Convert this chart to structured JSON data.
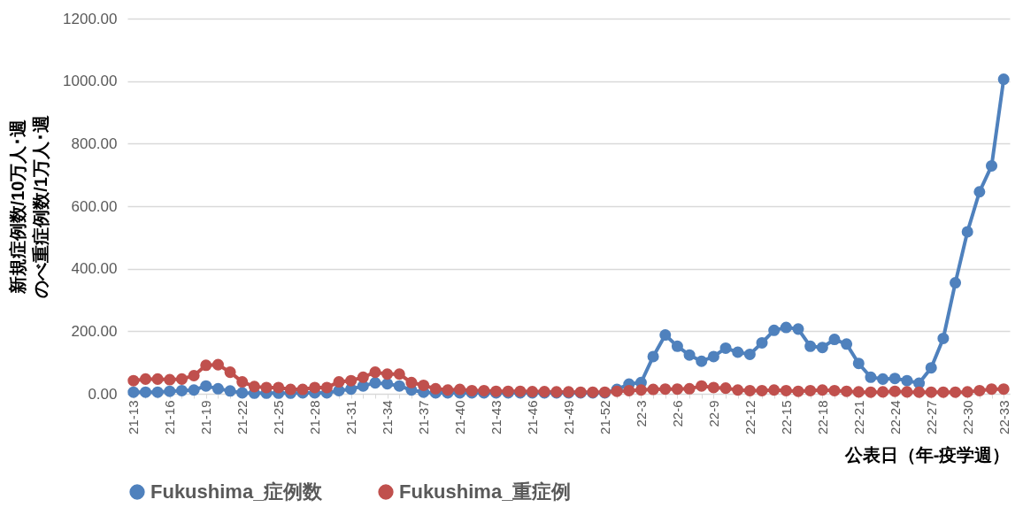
{
  "chart_data": {
    "type": "line",
    "xlabel": "公表日（年-疫学週）",
    "ylabel": "新規症例数/10万人･週のべ重症例数/1万人･週",
    "categories": [
      "21-13",
      null,
      null,
      "21-16",
      null,
      null,
      "21-19",
      null,
      null,
      "21-22",
      null,
      null,
      "21-25",
      null,
      null,
      "21-28",
      null,
      null,
      "21-31",
      null,
      null,
      "21-34",
      null,
      null,
      "21-37",
      null,
      null,
      "21-40",
      null,
      null,
      "21-43",
      null,
      null,
      "21-46",
      null,
      null,
      "21-49",
      null,
      null,
      "21-52",
      null,
      null,
      "22-3",
      null,
      null,
      "22-6",
      null,
      null,
      "22-9",
      null,
      null,
      "22-12",
      null,
      null,
      "22-15",
      null,
      null,
      "22-18",
      null,
      null,
      "22-21",
      null,
      null,
      "22-24",
      null,
      null,
      "22-27",
      null,
      null,
      "22-30",
      null,
      null,
      "22-33"
    ],
    "series": [
      {
        "name": "Fukushima_症例数",
        "color": "#4f81bd",
        "values": [
          5,
          5,
          5,
          8,
          10,
          12,
          25,
          16,
          9,
          3,
          2,
          2,
          2,
          2,
          3,
          3,
          3,
          10,
          15,
          25,
          35,
          32,
          25,
          12,
          5,
          3,
          3,
          3,
          3,
          3,
          3,
          3,
          3,
          3,
          3,
          3,
          3,
          3,
          3,
          3,
          14,
          31,
          36,
          119,
          188,
          152,
          124,
          104,
          119,
          146,
          133,
          126,
          163,
          203,
          212,
          207,
          152,
          148,
          174,
          159,
          97,
          53,
          47,
          49,
          42,
          34,
          83,
          177,
          355,
          518,
          646,
          729,
          1006
        ]
      },
      {
        "name": "Fukushima_重症例",
        "color": "#c0504d",
        "values": [
          42,
          47,
          47,
          45,
          47,
          58,
          91,
          93,
          69,
          38,
          23,
          20,
          20,
          14,
          14,
          20,
          20,
          38,
          42,
          53,
          69,
          63,
          63,
          36,
          27,
          16,
          12,
          14,
          10,
          10,
          8,
          8,
          8,
          7,
          7,
          6,
          6,
          5,
          5,
          5,
          8,
          10,
          12,
          14,
          15,
          15,
          16,
          25,
          20,
          18,
          12,
          10,
          10,
          12,
          10,
          8,
          10,
          12,
          10,
          8,
          6,
          5,
          6,
          8,
          6,
          5,
          5,
          5,
          5,
          6,
          10,
          15,
          15
        ]
      }
    ],
    "ylim": [
      0,
      1200
    ],
    "yticks": [
      {
        "value": 0,
        "label": "0.00"
      },
      {
        "value": 200,
        "label": "200.00"
      },
      {
        "value": 400,
        "label": "400.00"
      },
      {
        "value": 600,
        "label": "600.00"
      },
      {
        "value": 800,
        "label": "800.00"
      },
      {
        "value": 1000,
        "label": "1000.00"
      },
      {
        "value": 1200,
        "label": "1200.00"
      }
    ],
    "grid": "y",
    "legend": "bottom",
    "marker": "circle"
  }
}
